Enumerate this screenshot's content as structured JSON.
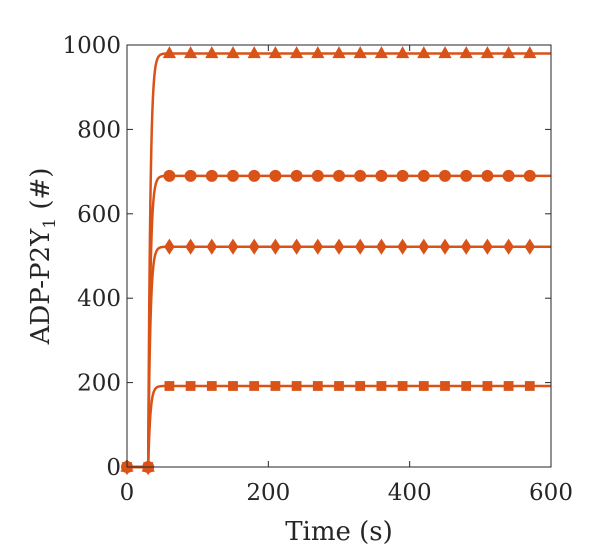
{
  "chart_data": {
    "type": "line",
    "xlabel": "Time (s)",
    "ylabel_main": "ADP-P2Y",
    "ylabel_sub": "1",
    "ylabel_tail": " (#)",
    "xlim": [
      0,
      600
    ],
    "ylim": [
      0,
      1000
    ],
    "xticks": [
      0,
      200,
      400,
      600
    ],
    "yticks": [
      0,
      200,
      400,
      600,
      800,
      1000
    ],
    "grid": false,
    "color": "#d95319",
    "onset_time": 30,
    "rise_time_constant": 3,
    "marker_times": [
      0,
      30,
      60,
      90,
      120,
      150,
      180,
      210,
      240,
      270,
      300,
      330,
      360,
      390,
      420,
      450,
      480,
      510,
      540,
      570
    ],
    "series": [
      {
        "marker": "triangle",
        "plateau": 980
      },
      {
        "marker": "circle",
        "plateau": 690
      },
      {
        "marker": "diamond",
        "plateau": 522
      },
      {
        "marker": "square",
        "plateau": 192
      }
    ]
  }
}
